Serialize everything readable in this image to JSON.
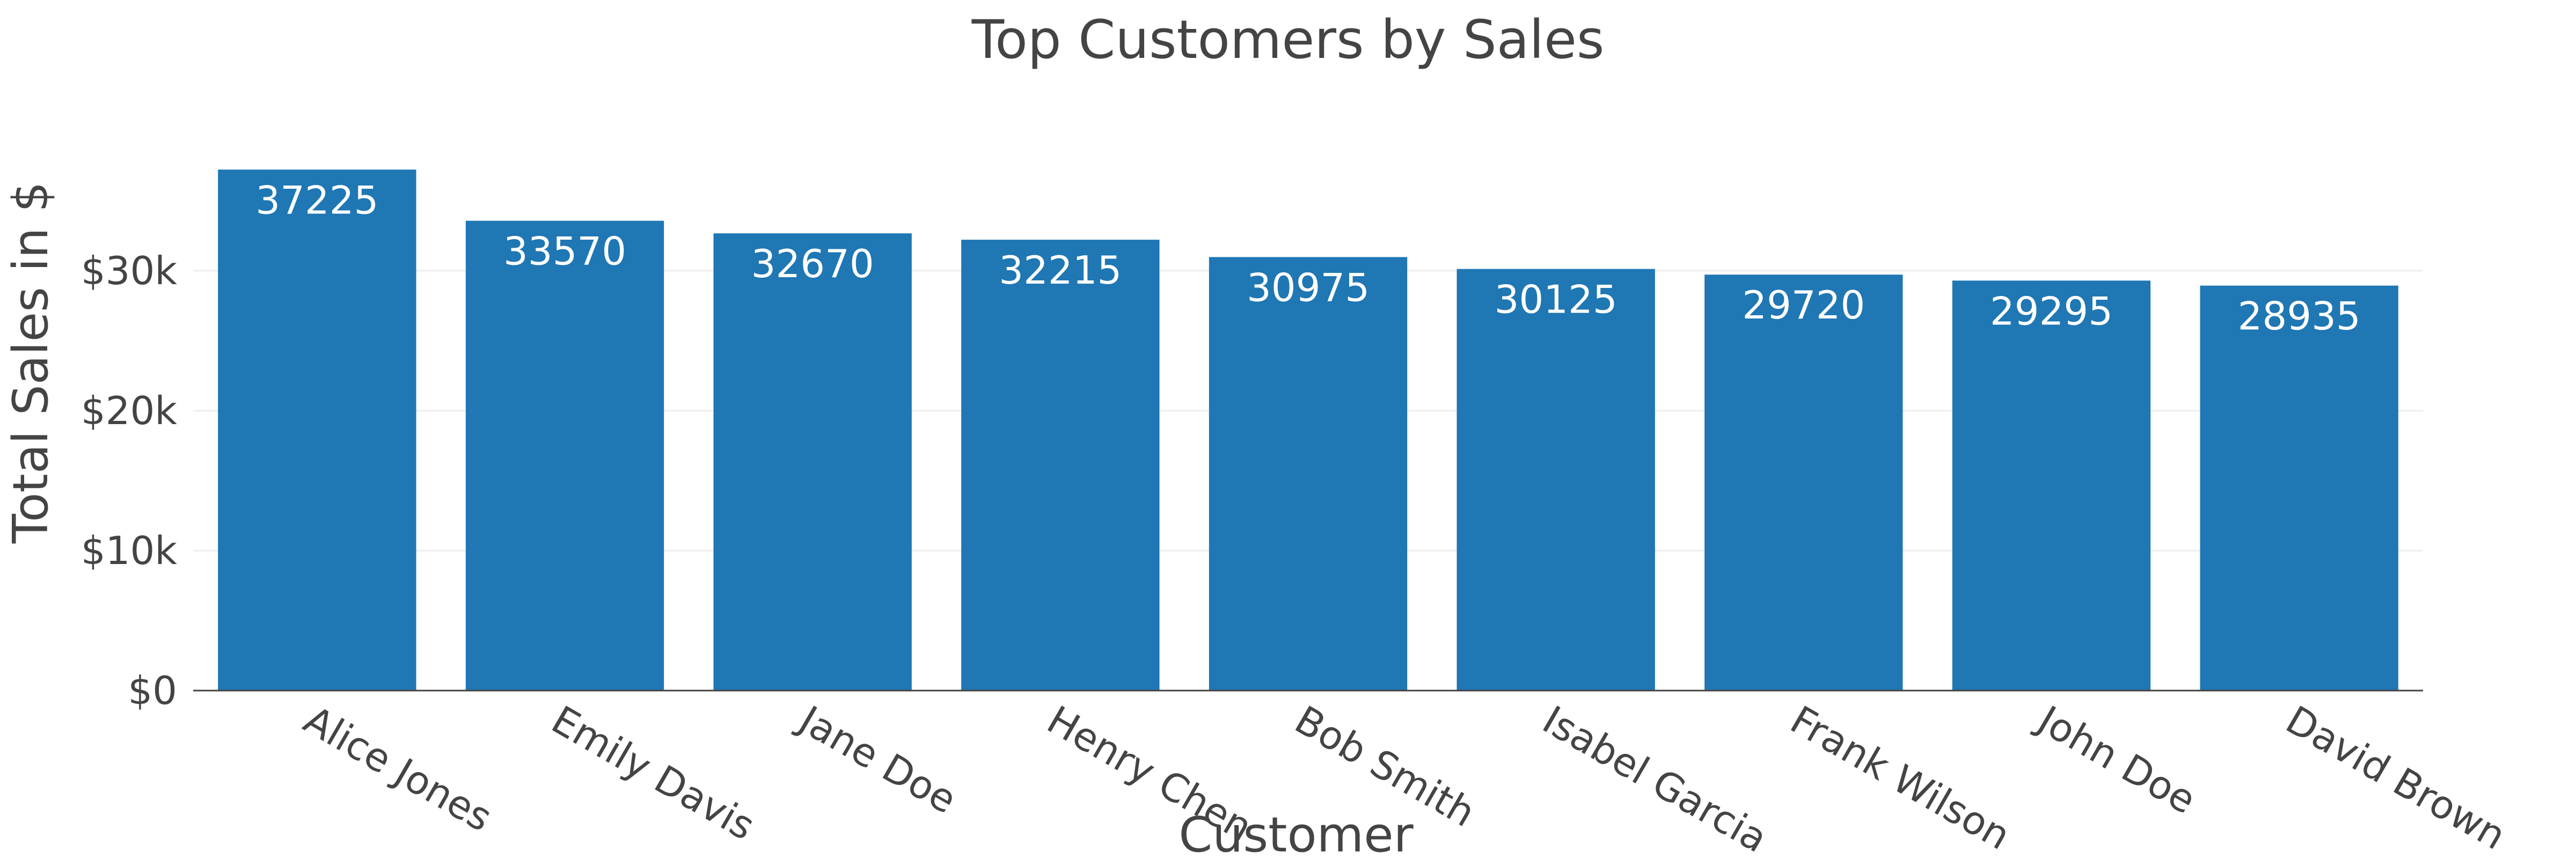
{
  "chart_data": {
    "type": "bar",
    "title": "Top Customers by Sales",
    "xlabel": "Customer",
    "ylabel": "Total Sales in $",
    "categories": [
      "Alice Jones",
      "Emily Davis",
      "Jane Doe",
      "Henry Chen",
      "Bob Smith",
      "Isabel Garcia",
      "Frank Wilson",
      "John Doe",
      "David Brown"
    ],
    "values": [
      37225,
      33570,
      32670,
      32215,
      30975,
      30125,
      29720,
      29295,
      28935
    ],
    "data_labels": [
      "37225",
      "33570",
      "32670",
      "32215",
      "30975",
      "30125",
      "29720",
      "29295",
      "28935"
    ],
    "ylim": [
      0,
      39000
    ],
    "yticks": [
      0,
      10000,
      20000,
      30000
    ],
    "ytick_labels": [
      "$0",
      "$10k",
      "$20k",
      "$30k"
    ],
    "grid": true,
    "legend": "none",
    "bar_color": "#1f77b4"
  }
}
